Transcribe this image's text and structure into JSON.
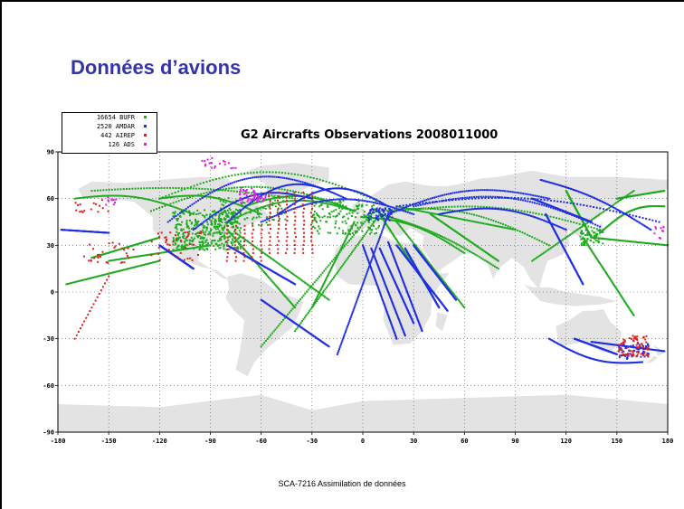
{
  "slide": {
    "title": "Données d’avions",
    "footer": "SCA-7216  Assimilation de données"
  },
  "figure": {
    "title": "G2 Aircrafts Observations 2008011000",
    "x_ticks": [
      "-180",
      "-150",
      "-120",
      "-90",
      "-60",
      "-30",
      "0",
      "30",
      "60",
      "90",
      "120",
      "150",
      "180"
    ],
    "y_ticks": [
      "90",
      "60",
      "30",
      "0",
      "-30",
      "-60",
      "-90"
    ],
    "legend": [
      {
        "label": "16654 BUFR",
        "color": "#1faa1f"
      },
      {
        "label": "2520 AMDAR",
        "color": "#1f2fe0"
      },
      {
        "label": "442 AIREP",
        "color": "#e02020"
      },
      {
        "label": "126 ADS",
        "color": "#e020e0"
      }
    ],
    "land_color": "#e3e3e3",
    "ocean_color": "#ffffff",
    "grid": true
  }
}
